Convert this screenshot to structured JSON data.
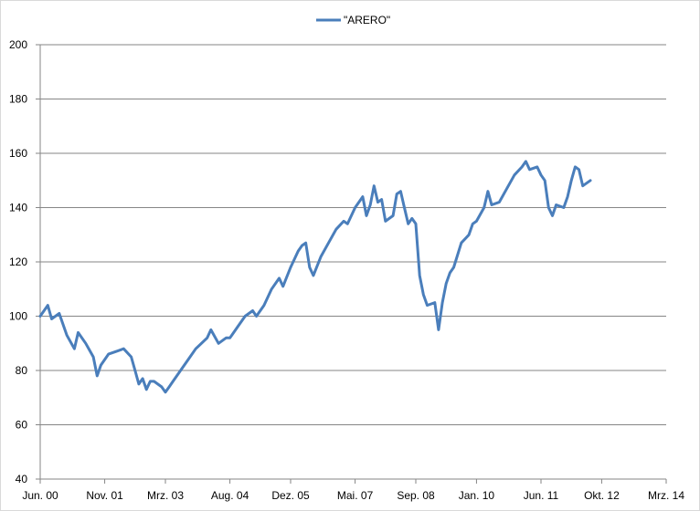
{
  "chart_data": {
    "type": "line",
    "x_start": "Jun. 00",
    "x_tick_labels": [
      "Jun. 00",
      "Nov. 01",
      "Mrz. 03",
      "Aug. 04",
      "Dez. 05",
      "Mai. 07",
      "Sep. 08",
      "Jan. 10",
      "Jun. 11",
      "Okt. 12",
      "Mrz. 14"
    ],
    "y_tick_labels": [
      "40",
      "60",
      "80",
      "100",
      "120",
      "140",
      "160",
      "180",
      "200"
    ],
    "ylim": [
      40,
      200
    ],
    "grid": "horizontal",
    "legend_position": "top-center",
    "series": [
      {
        "name": "\"ARERO\"",
        "color": "#4a7ebb",
        "points": [
          [
            "Jun. 00",
            100
          ],
          [
            "Aug. 00",
            104
          ],
          [
            "Sep. 00",
            99
          ],
          [
            "Nov. 00",
            101
          ],
          [
            "Jan. 01",
            93
          ],
          [
            "Mrz. 01",
            88
          ],
          [
            "Apr. 01",
            94
          ],
          [
            "Jun. 01",
            90
          ],
          [
            "Aug. 01",
            85
          ],
          [
            "Sep. 01",
            78
          ],
          [
            "Okt. 01",
            82
          ],
          [
            "Dez. 01",
            86
          ],
          [
            "Feb. 02",
            87
          ],
          [
            "Apr. 02",
            88
          ],
          [
            "Jun. 02",
            85
          ],
          [
            "Jul. 02",
            80
          ],
          [
            "Aug. 02",
            75
          ],
          [
            "Sep. 02",
            77
          ],
          [
            "Okt. 02",
            73
          ],
          [
            "Nov. 02",
            76
          ],
          [
            "Dez. 02",
            76
          ],
          [
            "Feb. 03",
            74
          ],
          [
            "Mrz. 03",
            72
          ],
          [
            "Apr. 03",
            74
          ],
          [
            "Mai. 03",
            76
          ],
          [
            "Jul. 03",
            80
          ],
          [
            "Sep. 03",
            84
          ],
          [
            "Nov. 03",
            88
          ],
          [
            "Feb. 04",
            92
          ],
          [
            "Mrz. 04",
            95
          ],
          [
            "Mai. 04",
            90
          ],
          [
            "Jul. 04",
            92
          ],
          [
            "Aug. 04",
            92
          ],
          [
            "Okt. 04",
            96
          ],
          [
            "Dez. 04",
            100
          ],
          [
            "Feb. 05",
            102
          ],
          [
            "Mrz. 05",
            100
          ],
          [
            "Mai. 05",
            104
          ],
          [
            "Jul. 05",
            110
          ],
          [
            "Sep. 05",
            114
          ],
          [
            "Okt. 05",
            111
          ],
          [
            "Dez. 05",
            118
          ],
          [
            "Feb. 06",
            124
          ],
          [
            "Mrz. 06",
            126
          ],
          [
            "Apr. 06",
            127
          ],
          [
            "Mai. 06",
            118
          ],
          [
            "Jun. 06",
            115
          ],
          [
            "Aug. 06",
            122
          ],
          [
            "Okt. 06",
            127
          ],
          [
            "Dez. 06",
            132
          ],
          [
            "Feb. 07",
            135
          ],
          [
            "Mrz. 07",
            134
          ],
          [
            "Mai. 07",
            140
          ],
          [
            "Jul. 07",
            144
          ],
          [
            "Aug. 07",
            137
          ],
          [
            "Sep. 07",
            141
          ],
          [
            "Okt. 07",
            148
          ],
          [
            "Nov. 07",
            142
          ],
          [
            "Dez. 07",
            143
          ],
          [
            "Jan. 08",
            135
          ],
          [
            "Mrz. 08",
            137
          ],
          [
            "Apr. 08",
            145
          ],
          [
            "Mai. 08",
            146
          ],
          [
            "Jun. 08",
            140
          ],
          [
            "Jul. 08",
            134
          ],
          [
            "Aug. 08",
            136
          ],
          [
            "Sep. 08",
            134
          ],
          [
            "Okt. 08",
            115
          ],
          [
            "Nov. 08",
            108
          ],
          [
            "Dez. 08",
            104
          ],
          [
            "Feb. 09",
            105
          ],
          [
            "Mrz. 09",
            95
          ],
          [
            "Apr. 09",
            105
          ],
          [
            "Mai. 09",
            112
          ],
          [
            "Jun. 09",
            116
          ],
          [
            "Jul. 09",
            118
          ],
          [
            "Sep. 09",
            127
          ],
          [
            "Nov. 09",
            130
          ],
          [
            "Dez. 09",
            134
          ],
          [
            "Jan. 10",
            135
          ],
          [
            "Mrz. 10",
            140
          ],
          [
            "Apr. 10",
            146
          ],
          [
            "Mai. 10",
            141
          ],
          [
            "Jul. 10",
            142
          ],
          [
            "Sep. 10",
            147
          ],
          [
            "Nov. 10",
            152
          ],
          [
            "Jan. 11",
            155
          ],
          [
            "Feb. 11",
            157
          ],
          [
            "Mrz. 11",
            154
          ],
          [
            "Mai. 11",
            155
          ],
          [
            "Jun. 11",
            152
          ],
          [
            "Jul. 11",
            150
          ],
          [
            "Aug. 11",
            140
          ],
          [
            "Sep. 11",
            137
          ],
          [
            "Okt. 11",
            141
          ],
          [
            "Dez. 11",
            140
          ],
          [
            "Jan. 12",
            144
          ],
          [
            "Feb. 12",
            150
          ],
          [
            "Mrz. 12",
            155
          ],
          [
            "Apr. 12",
            154
          ],
          [
            "Mai. 12",
            148
          ],
          [
            "Jul. 12",
            150
          ]
        ]
      }
    ]
  }
}
